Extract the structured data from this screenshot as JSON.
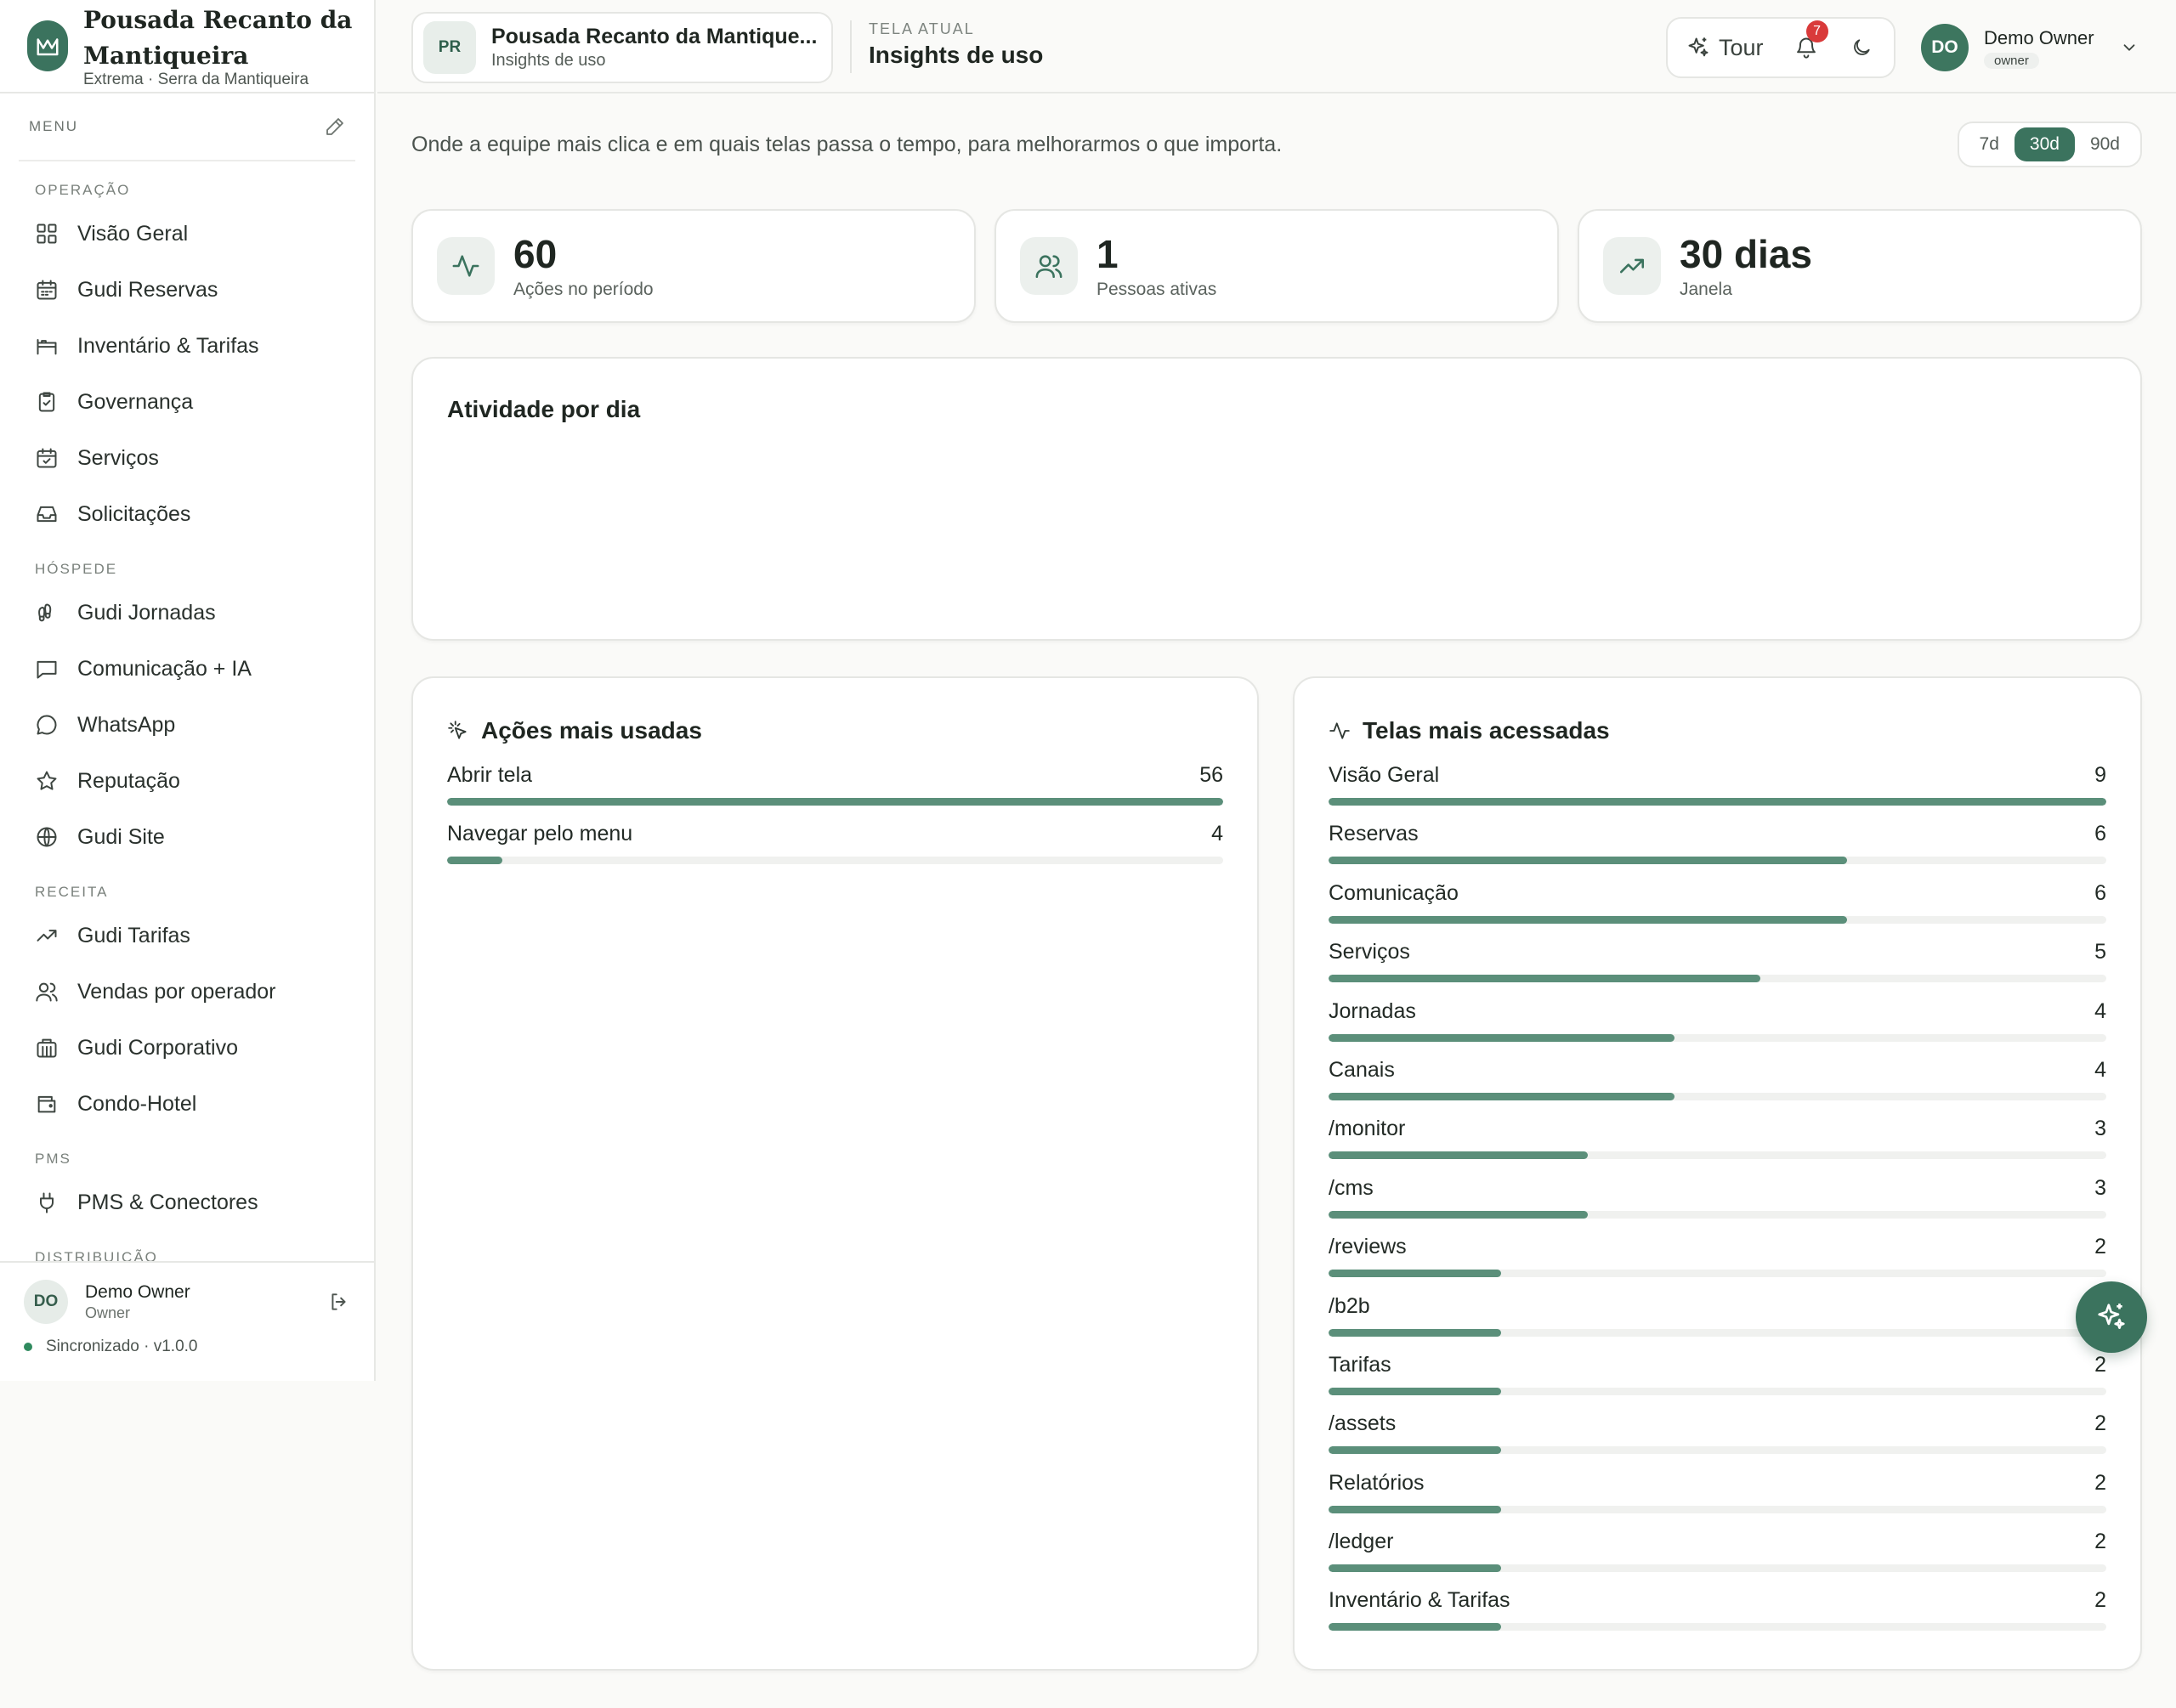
{
  "brand": {
    "name": "Pousada Recanto da Mantiqueira",
    "location": "Extrema · Serra da Mantiqueira"
  },
  "sidebar": {
    "menu_label": "MENU",
    "sections": [
      {
        "label": "OPERAÇÃO",
        "items": [
          {
            "label": "Visão Geral",
            "icon": "grid-icon"
          },
          {
            "label": "Gudi Reservas",
            "icon": "calendar-icon"
          },
          {
            "label": "Inventário & Tarifas",
            "icon": "bed-icon"
          },
          {
            "label": "Governança",
            "icon": "clipboard-check-icon"
          },
          {
            "label": "Serviços",
            "icon": "calendar-check-icon"
          },
          {
            "label": "Solicitações",
            "icon": "inbox-icon"
          }
        ]
      },
      {
        "label": "HÓSPEDE",
        "items": [
          {
            "label": "Gudi Jornadas",
            "icon": "footprints-icon"
          },
          {
            "label": "Comunicação + IA",
            "icon": "message-square-icon"
          },
          {
            "label": "WhatsApp",
            "icon": "message-circle-icon"
          },
          {
            "label": "Reputação",
            "icon": "star-icon"
          },
          {
            "label": "Gudi Site",
            "icon": "globe-icon"
          }
        ]
      },
      {
        "label": "RECEITA",
        "items": [
          {
            "label": "Gudi Tarifas",
            "icon": "trending-up-icon"
          },
          {
            "label": "Vendas por operador",
            "icon": "users-icon"
          },
          {
            "label": "Gudi Corporativo",
            "icon": "building-icon"
          },
          {
            "label": "Condo-Hotel",
            "icon": "wallet-icon"
          }
        ]
      },
      {
        "label": "PMS",
        "items": [
          {
            "label": "PMS & Conectores",
            "icon": "plug-icon"
          }
        ]
      },
      {
        "label": "DISTRIBUIÇÃO",
        "items": []
      }
    ],
    "footer": {
      "avatar": "DO",
      "name": "Demo Owner",
      "role": "Owner",
      "sync": "Sincronizado · v1.0.0"
    }
  },
  "topbar": {
    "property_badge": "PR",
    "property_name": "Pousada Recanto da Mantique...",
    "property_sub": "Insights de uso",
    "current_label": "TELA ATUAL",
    "current_title": "Insights de uso",
    "tour_label": "Tour",
    "notifications_count": "7",
    "user_avatar": "DO",
    "user_name": "Demo Owner",
    "user_role": "owner"
  },
  "main": {
    "intro": "Onde a equipe mais clica e em quais telas passa o tempo, para melhorarmos o que importa.",
    "ranges": [
      "7d",
      "30d",
      "90d"
    ],
    "active_range": "30d",
    "kpis": [
      {
        "value": "60",
        "label": "Ações no período",
        "icon": "activity-icon"
      },
      {
        "value": "1",
        "label": "Pessoas ativas",
        "icon": "users-icon"
      },
      {
        "value": "30 dias",
        "label": "Janela",
        "icon": "trending-up-icon"
      }
    ],
    "activity_title": "Atividade por dia",
    "top_actions": {
      "title": "Ações mais usadas",
      "items": [
        {
          "label": "Abrir tela",
          "value": 56
        },
        {
          "label": "Navegar pelo menu",
          "value": 4
        }
      ]
    },
    "top_screens": {
      "title": "Telas mais acessadas",
      "items": [
        {
          "label": "Visão Geral",
          "value": 9
        },
        {
          "label": "Reservas",
          "value": 6
        },
        {
          "label": "Comunicação",
          "value": 6
        },
        {
          "label": "Serviços",
          "value": 5
        },
        {
          "label": "Jornadas",
          "value": 4
        },
        {
          "label": "Canais",
          "value": 4
        },
        {
          "label": "/monitor",
          "value": 3
        },
        {
          "label": "/cms",
          "value": 3
        },
        {
          "label": "/reviews",
          "value": 2
        },
        {
          "label": "/b2b",
          "value": 2
        },
        {
          "label": "Tarifas",
          "value": 2
        },
        {
          "label": "/assets",
          "value": 2
        },
        {
          "label": "Relatórios",
          "value": 2
        },
        {
          "label": "/ledger",
          "value": 2
        },
        {
          "label": "Inventário & Tarifas",
          "value": 2
        }
      ]
    }
  },
  "colors": {
    "accent": "#3b735e",
    "bar": "#5b8f7a",
    "badge": "#d93a3a"
  }
}
